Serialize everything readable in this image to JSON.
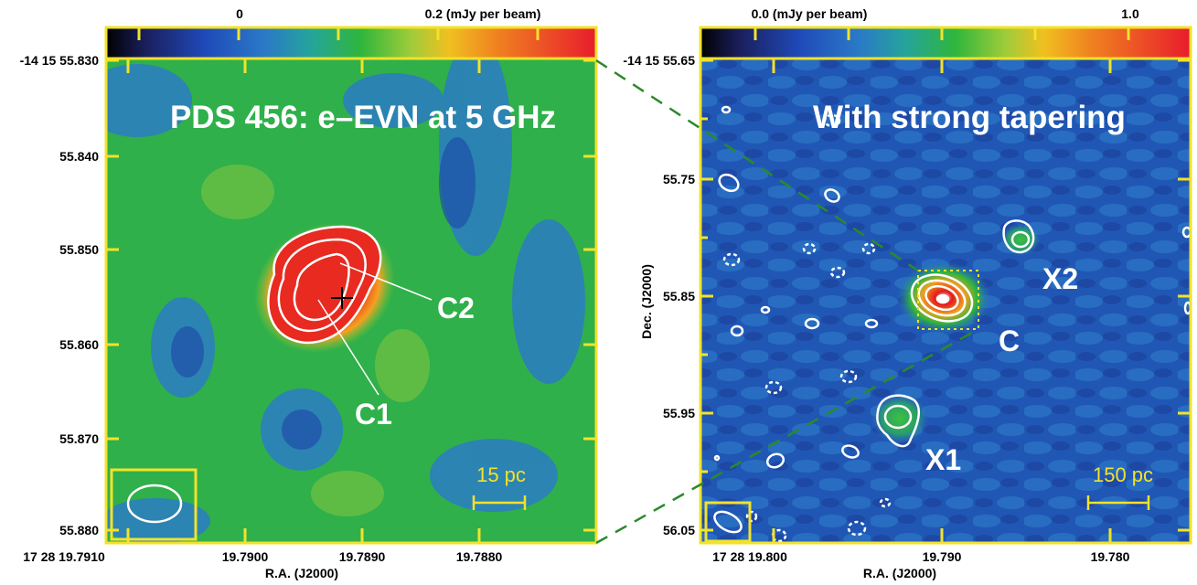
{
  "left_panel": {
    "colorbar": {
      "low_label": "0",
      "high_label": "0.2 (mJy per beam)"
    },
    "title": "PDS 456: e–EVN at 5 GHz",
    "dec_ticks": [
      "-14 15 55.830",
      "55.840",
      "55.850",
      "55.860",
      "55.870",
      "55.880"
    ],
    "ra_ticks": [
      "17 28 19.7910",
      "19.7900",
      "19.7890",
      "19.7880"
    ],
    "xlabel": "R.A. (J2000)",
    "component_labels": [
      "C2",
      "C1"
    ],
    "scalebar": "15 pc"
  },
  "right_panel": {
    "colorbar": {
      "low_label": "0.0 (mJy per beam)",
      "high_label": "1.0"
    },
    "title": "With strong tapering",
    "dec_ticks": [
      "-14 15 55.65",
      "55.75",
      "55.85",
      "55.95",
      "56.05"
    ],
    "ra_ticks": [
      "17 28 19.800",
      "19.790",
      "19.780"
    ],
    "xlabel": "R.A. (J2000)",
    "ylabel": "Dec. (J2000)",
    "component_labels": [
      "X2",
      "C",
      "X1"
    ],
    "scalebar": "150 pc"
  },
  "colors": {
    "frame": "#f2e22a",
    "contour": "#ffffff",
    "connector": "#2a8a2a"
  }
}
